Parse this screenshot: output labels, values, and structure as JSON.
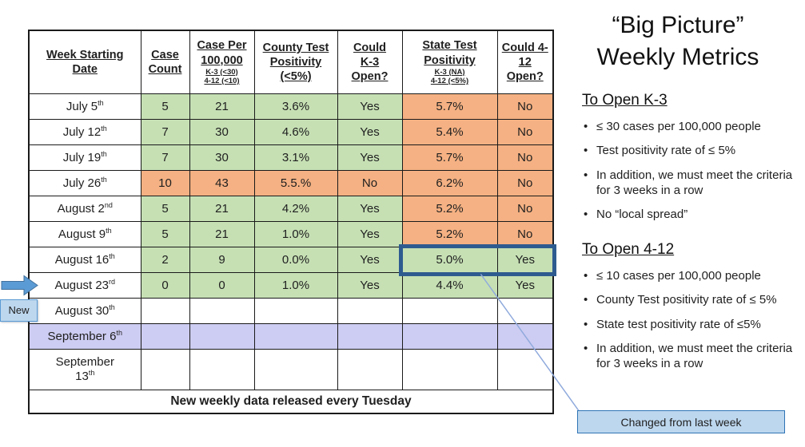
{
  "colors": {
    "cell_green": "#c6e0b4",
    "cell_orange": "#f5b183",
    "row_purple": "#cdccf2",
    "highlight_border": "#2e5b8f",
    "arrow_blue": "#5b9bd5",
    "callout_fill": "#bdd7ee",
    "callout_border": "#2e74b5",
    "callout_line": "#8faadc"
  },
  "table": {
    "headers": [
      {
        "text": "Week Starting\nDate",
        "sub": []
      },
      {
        "text": "Case\nCount",
        "sub": []
      },
      {
        "text": "Case Per\n100,000",
        "sub": [
          "K-3 (<30)",
          "4-12 (<10)"
        ]
      },
      {
        "text": "County Test\nPositivity\n(<5%)",
        "sub": []
      },
      {
        "text": "Could\nK-3\nOpen?",
        "sub": []
      },
      {
        "text": "State Test\nPositivity",
        "sub": [
          "K-3 (NA)",
          "4-12 (<5%)"
        ]
      },
      {
        "text": "Could 4-\n12\nOpen?",
        "sub": []
      }
    ],
    "rows": [
      {
        "date": "July 5",
        "sup": "th",
        "bg": "white",
        "cells": [
          {
            "t": "5",
            "c": "green"
          },
          {
            "t": "21",
            "c": "green"
          },
          {
            "t": "3.6%",
            "c": "green"
          },
          {
            "t": "Yes",
            "c": "green"
          },
          {
            "t": "5.7%",
            "c": "orange"
          },
          {
            "t": "No",
            "c": "orange"
          }
        ]
      },
      {
        "date": "July 12",
        "sup": "th",
        "bg": "white",
        "cells": [
          {
            "t": "7",
            "c": "green"
          },
          {
            "t": "30",
            "c": "green"
          },
          {
            "t": "4.6%",
            "c": "green"
          },
          {
            "t": "Yes",
            "c": "green"
          },
          {
            "t": "5.4%",
            "c": "orange"
          },
          {
            "t": "No",
            "c": "orange"
          }
        ]
      },
      {
        "date": "July 19",
        "sup": "th",
        "bg": "white",
        "cells": [
          {
            "t": "7",
            "c": "green"
          },
          {
            "t": "30",
            "c": "green"
          },
          {
            "t": "3.1%",
            "c": "green"
          },
          {
            "t": "Yes",
            "c": "green"
          },
          {
            "t": "5.7%",
            "c": "orange"
          },
          {
            "t": "No",
            "c": "orange"
          }
        ]
      },
      {
        "date": "July 26",
        "sup": "th",
        "bg": "white",
        "cells": [
          {
            "t": "10",
            "c": "orange"
          },
          {
            "t": "43",
            "c": "orange"
          },
          {
            "t": "5.5.%",
            "c": "orange"
          },
          {
            "t": "No",
            "c": "orange"
          },
          {
            "t": "6.2%",
            "c": "orange"
          },
          {
            "t": "No",
            "c": "orange"
          }
        ]
      },
      {
        "date": "August 2",
        "sup": "nd",
        "bg": "white",
        "cells": [
          {
            "t": "5",
            "c": "green"
          },
          {
            "t": "21",
            "c": "green"
          },
          {
            "t": "4.2%",
            "c": "green"
          },
          {
            "t": "Yes",
            "c": "green"
          },
          {
            "t": "5.2%",
            "c": "orange"
          },
          {
            "t": "No",
            "c": "orange"
          }
        ]
      },
      {
        "date": "August 9",
        "sup": "th",
        "bg": "white",
        "cells": [
          {
            "t": "5",
            "c": "green"
          },
          {
            "t": "21",
            "c": "green"
          },
          {
            "t": "1.0%",
            "c": "green"
          },
          {
            "t": "Yes",
            "c": "green"
          },
          {
            "t": "5.2%",
            "c": "orange"
          },
          {
            "t": "No",
            "c": "orange"
          }
        ]
      },
      {
        "date": "August 16",
        "sup": "th",
        "bg": "white",
        "highlight": true,
        "cells": [
          {
            "t": "2",
            "c": "green"
          },
          {
            "t": "9",
            "c": "green"
          },
          {
            "t": "0.0%",
            "c": "green"
          },
          {
            "t": "Yes",
            "c": "green"
          },
          {
            "t": "5.0%",
            "c": "green"
          },
          {
            "t": "Yes",
            "c": "green"
          }
        ]
      },
      {
        "date": "August 23",
        "sup": "rd",
        "bg": "white",
        "arrow": true,
        "cells": [
          {
            "t": "0",
            "c": "green"
          },
          {
            "t": "0",
            "c": "green"
          },
          {
            "t": "1.0%",
            "c": "green"
          },
          {
            "t": "Yes",
            "c": "green"
          },
          {
            "t": "4.4%",
            "c": "green"
          },
          {
            "t": "Yes",
            "c": "green"
          }
        ]
      },
      {
        "date": "August 30",
        "sup": "th",
        "bg": "white",
        "cells": []
      },
      {
        "date": "September 6",
        "sup": "th",
        "bg": "purple",
        "cells": []
      },
      {
        "date": "September\n13",
        "sup": "th",
        "bg": "white",
        "tall": true,
        "cells": []
      }
    ],
    "footer": "New weekly data released every Tuesday"
  },
  "side": {
    "title": "“Big Picture”\nWeekly Metrics",
    "sections": [
      {
        "heading": "To Open K-3",
        "bullets": [
          "≤ 30 cases per 100,000 people",
          "Test positivity rate of ≤ 5%",
          "In addition, we must meet the criteria for 3 weeks in a row",
          "No “local spread”"
        ]
      },
      {
        "heading": "To Open 4-12",
        "bullets": [
          "≤ 10 cases per 100,000 people",
          "County Test positivity rate of ≤ 5%",
          "State test positivity rate of ≤5%",
          "In addition, we must meet the criteria for 3 weeks in a row"
        ]
      }
    ]
  },
  "annotations": {
    "new_label": "New",
    "changed_label": "Changed from last week"
  }
}
